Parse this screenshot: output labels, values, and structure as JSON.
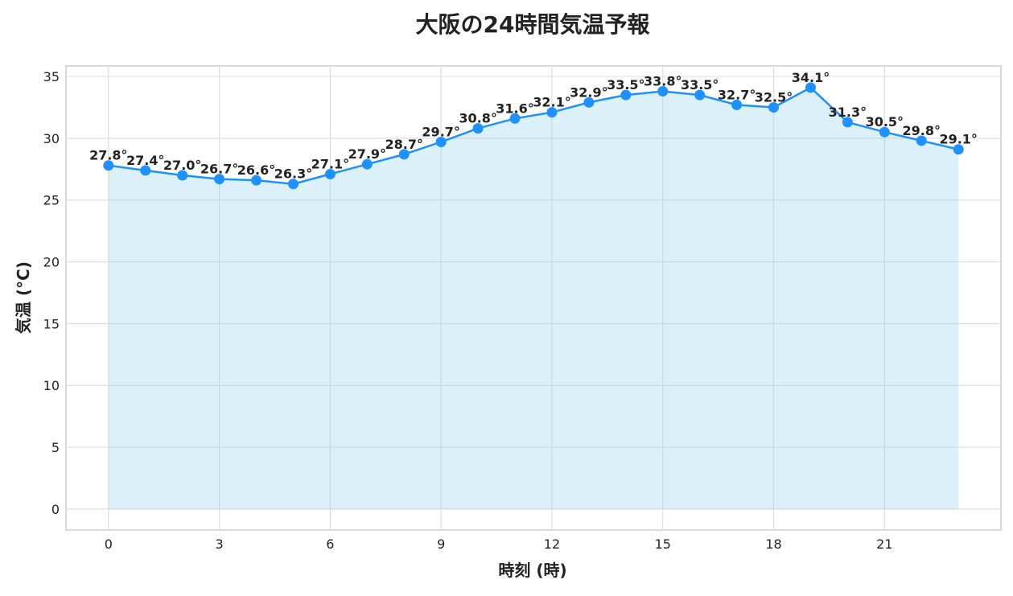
{
  "chart_data": {
    "type": "line",
    "title": "大阪の24時間気温予報",
    "x_label": "時刻 (時)",
    "y_label": "気温 (°C)",
    "x": [
      0,
      1,
      2,
      3,
      4,
      5,
      6,
      7,
      8,
      9,
      10,
      11,
      12,
      13,
      14,
      15,
      16,
      17,
      18,
      19,
      20,
      21,
      22,
      23
    ],
    "series": [
      {
        "name": "気温",
        "color": "#1e90ff",
        "fill": "#87ceeb",
        "values": [
          27.8,
          27.4,
          27.0,
          26.7,
          26.6,
          26.3,
          27.1,
          27.9,
          28.7,
          29.7,
          30.8,
          31.6,
          32.1,
          32.9,
          33.5,
          33.8,
          33.5,
          32.7,
          32.5,
          34.1,
          31.3,
          30.5,
          29.8,
          29.1
        ],
        "value_labels": [
          "27.8°",
          "27.4°",
          "27.0°",
          "26.7°",
          "26.6°",
          "26.3°",
          "27.1°",
          "27.9°",
          "28.7°",
          "29.7°",
          "30.8°",
          "31.6°",
          "32.1°",
          "32.9°",
          "33.5°",
          "33.8°",
          "33.5°",
          "32.7°",
          "32.5°",
          "34.1°",
          "31.3°",
          "30.5°",
          "29.8°",
          "29.1°"
        ]
      }
    ],
    "xlim": [
      -1.15,
      24.15
    ],
    "xticks": [
      0,
      3,
      6,
      9,
      12,
      15,
      18,
      21
    ],
    "ylim": [
      -1.7,
      35.85
    ],
    "yticks": [
      0,
      5,
      10,
      15,
      20,
      25,
      30,
      35
    ],
    "grid": true
  }
}
